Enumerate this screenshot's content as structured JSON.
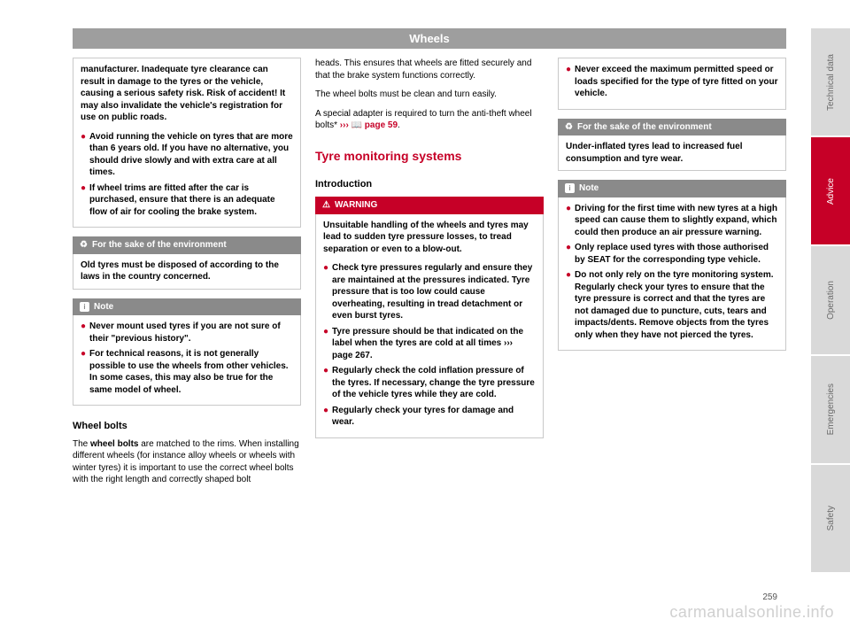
{
  "title": "Wheels",
  "pageNumber": "259",
  "watermark": "carmanualsonline.info",
  "col1": {
    "warnBox": {
      "p1": "manufacturer. Inadequate tyre clearance can result in damage to the tyres or the vehicle, causing a serious safety risk. Risk of accident! It may also invalidate the vehicle's registration for use on public roads.",
      "b1": "Avoid running the vehicle on tyres that are more than 6 years old. If you have no alternative, you should drive slowly and with extra care at all times.",
      "b2": "If wheel trims are fitted after the car is purchased, ensure that there is an adequate flow of air for cooling the brake system."
    },
    "env": {
      "head": "For the sake of the environment",
      "body": "Old tyres must be disposed of according to the laws in the country concerned."
    },
    "note": {
      "head": "Note",
      "b1": "Never mount used tyres if you are not sure of their \"previous history\".",
      "b2": "For technical reasons, it is not generally possible to use the wheels from other vehicles. In some cases, this may also be true for the same model of wheel."
    },
    "wheelBolts": {
      "head": "Wheel bolts",
      "p1a": "The ",
      "p1b": "wheel bolts",
      "p1c": " are matched to the rims. When installing different wheels (for instance alloy wheels or wheels with winter tyres) it is important to use the correct wheel bolts with the right length and correctly shaped bolt"
    }
  },
  "col2": {
    "p1": "heads. This ensures that wheels are fitted securely and that the brake system functions correctly.",
    "p2": "The wheel bolts must be clean and turn easily.",
    "p3a": "A special adapter is required to turn the anti-theft wheel bolts* ",
    "p3ref": "››› 📖 page 59",
    "p3b": ".",
    "tms": "Tyre monitoring systems",
    "intro": "Introduction",
    "warn": {
      "head": "WARNING",
      "p1": "Unsuitable handling of the wheels and tyres may lead to sudden tyre pressure losses, to tread separation or even to a blow-out.",
      "b1": "Check tyre pressures regularly and ensure they are maintained at the pressures indicated. Tyre pressure that is too low could cause overheating, resulting in tread detachment or even burst tyres.",
      "b2a": "Tyre pressure should be that indicated on the label when the tyres are cold at all times ",
      "b2ref": "››› page 267",
      "b2b": ".",
      "b3": "Regularly check the cold inflation pressure of the tyres. If necessary, change the tyre pressure of the vehicle tyres while they are cold.",
      "b4": "Regularly check your tyres for damage and wear."
    }
  },
  "col3": {
    "warnCont": {
      "b1": "Never exceed the maximum permitted speed or loads specified for the type of tyre fitted on your vehicle."
    },
    "env": {
      "head": "For the sake of the environment",
      "body": "Under-inflated tyres lead to increased fuel consumption and tyre wear."
    },
    "note": {
      "head": "Note",
      "b1": "Driving for the first time with new tyres at a high speed can cause them to slightly expand, which could then produce an air pressure warning.",
      "b2": "Only replace used tyres with those authorised by SEAT for the corresponding type vehicle.",
      "b3": "Do not only rely on the tyre monitoring system. Regularly check your tyres to ensure that the tyre pressure is correct and that the tyres are not damaged due to puncture, cuts, tears and impacts/dents. Remove objects from the tyres only when they have not pierced the tyres."
    }
  },
  "tabs": {
    "t1": "Technical data",
    "t2": "Advice",
    "t3": "Operation",
    "t4": "Emergencies",
    "t5": "Safety"
  }
}
